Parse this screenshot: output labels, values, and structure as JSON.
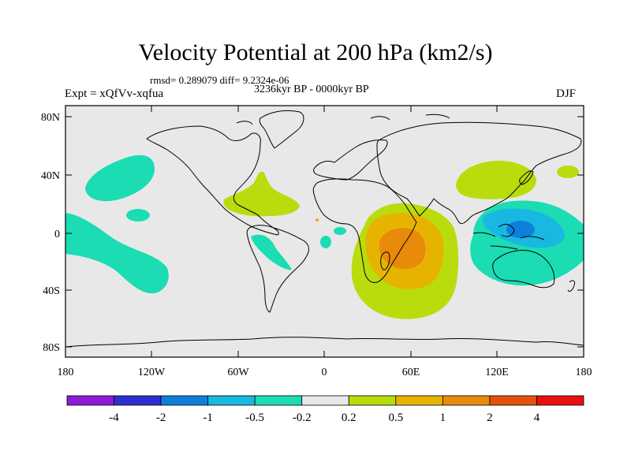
{
  "title": "Velocity Potential at 200 hPa (km2/s)",
  "stats": "rmsd= 0.289079 diff= 9.2324e-06",
  "period": "3236kyr BP - 0000kyr BP",
  "experiment": "Expt = xQfVv-xqfua",
  "season": "DJF",
  "axes": {
    "y_ticks": [
      "80N",
      "40N",
      "0",
      "40S",
      "80S"
    ],
    "x_ticks": [
      "180",
      "120W",
      "60W",
      "0",
      "60E",
      "120E",
      "180"
    ]
  },
  "colorbar": {
    "labels": [
      "-4",
      "-2",
      "-1",
      "-0.5",
      "-0.2",
      "0.2",
      "0.5",
      "1",
      "2",
      "4"
    ],
    "colors": [
      "#8a1bd6",
      "#2d2fd1",
      "#0f7fdc",
      "#19b8e0",
      "#1cdcb4",
      "#e8e8e8",
      "#b9dc0d",
      "#e6b400",
      "#e98a0b",
      "#e2520c",
      "#e8110f"
    ]
  },
  "colors": {
    "background": "#e8e8e8",
    "positive_weak": "#b9dc0d",
    "positive_mid": "#e6b400",
    "positive_strong": "#e98a0b",
    "negative_weak": "#1cdcb4",
    "negative_mid": "#19b8e0",
    "negative_strong": "#0f7fdc"
  }
}
